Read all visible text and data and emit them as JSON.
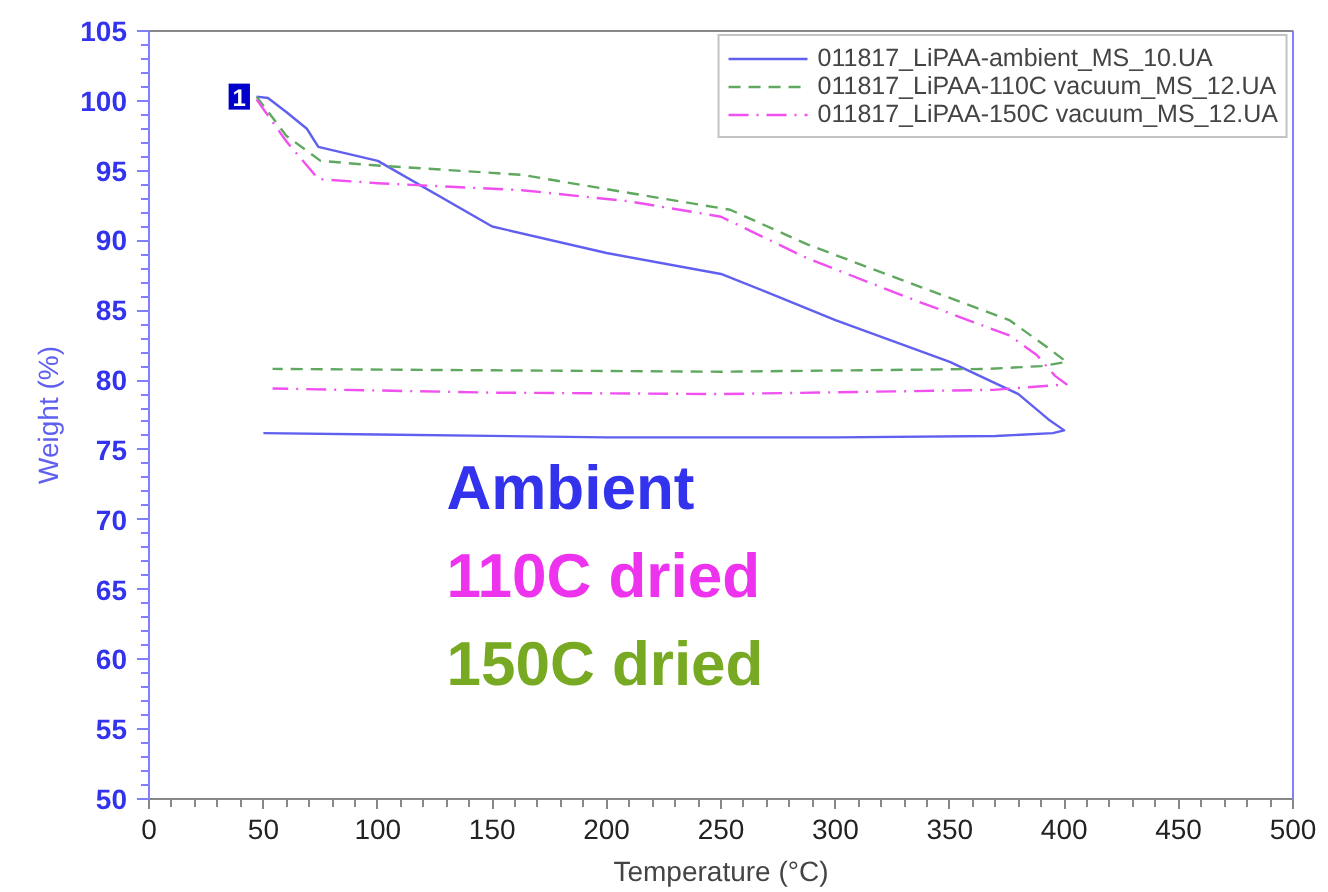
{
  "chart_data": {
    "type": "line",
    "xlabel": "Temperature (°C)",
    "ylabel": "Weight (%)",
    "xlim": [
      0,
      500
    ],
    "xticks": [
      0,
      50,
      100,
      150,
      200,
      250,
      300,
      350,
      400,
      450,
      500
    ],
    "ylim": [
      50,
      105
    ],
    "yticks": [
      50,
      55,
      60,
      65,
      70,
      75,
      80,
      85,
      90,
      95,
      100,
      105
    ],
    "grid": false,
    "legend": "top right",
    "series": [
      {
        "name": "011817_LiPAA-ambient_MS_10.UA",
        "color": "#6060f0",
        "line_style": "solid",
        "x": [
          47,
          52,
          60,
          69,
          74,
          100,
          150,
          200,
          250,
          270,
          300,
          350,
          380,
          393,
          400,
          395,
          370,
          300,
          200,
          100,
          50
        ],
        "values": [
          100.3,
          100.2,
          99.2,
          98.0,
          96.7,
          95.7,
          91.0,
          89.1,
          87.6,
          86.3,
          84.3,
          81.3,
          79.0,
          77.2,
          76.4,
          76.2,
          76.0,
          75.9,
          75.9,
          76.1,
          76.2
        ]
      },
      {
        "name": "011817_LiPAA-110C vacuum_MS_12.UA",
        "color": "#60a860",
        "line_style": "dashed",
        "x": [
          47,
          60,
          75,
          97,
          163,
          210,
          254,
          288,
          335,
          376,
          393,
          401,
          390,
          366,
          250,
          150,
          54
        ],
        "values": [
          100.3,
          97.5,
          95.7,
          95.4,
          94.7,
          93.4,
          92.2,
          89.7,
          86.8,
          84.3,
          82.3,
          81.3,
          81.0,
          80.8,
          80.6,
          80.7,
          80.8
        ]
      },
      {
        "name": "011817_LiPAA-150C vacuum_MS_12.UA",
        "color": "#f050f0",
        "line_style": "dashdot",
        "x": [
          47,
          60,
          74,
          100,
          163,
          210,
          250,
          288,
          335,
          376,
          388,
          396,
          401,
          369,
          250,
          150,
          54
        ],
        "values": [
          100.1,
          97.1,
          94.4,
          94.1,
          93.6,
          92.8,
          91.7,
          88.7,
          85.7,
          83.2,
          81.8,
          80.3,
          79.7,
          79.3,
          79.0,
          79.1,
          79.4
        ]
      }
    ],
    "annotations": [
      {
        "text": "1",
        "x": 45,
        "y": 100.3
      },
      "Ambient",
      "110C dried",
      "150C dried"
    ]
  }
}
